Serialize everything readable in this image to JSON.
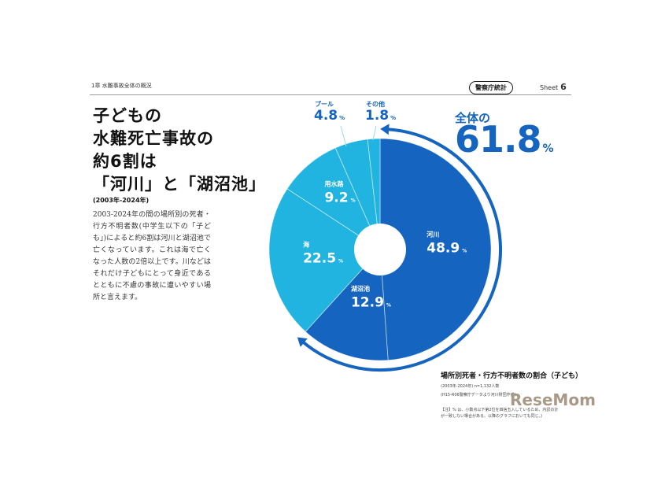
{
  "header": {
    "chapter": "1章 水難事故全体の概況",
    "badge": "警察庁統計",
    "sheet_label": "Sheet",
    "sheet_number": "6"
  },
  "headline": "子どもの\n水難死亡事故の\n約6割は\n「河川」と「湖沼池」",
  "period": "(2003年-2024年)",
  "body_text": "2003-2024年の間の場所別の死者・行方不明者数(中学生以下の「子ども」)によると約6割は河川と湖沼池で亡くなっています。これは海で亡くなった人数の2倍以上です。川などはそれだけ子どもにとって身近であるとともに不慮の事故に遭いやすい場所と言えます。",
  "total": {
    "label": "全体の",
    "value": "61.8",
    "unit": "%"
  },
  "caption": {
    "title": "場所別死者・行方不明者数の割合（子ども）",
    "period": "(2003年-2024年)  n=1,132人数",
    "source": "(H15-R06警察庁データより河川財団作成)",
    "note": "【注】% は、小数点以下第2位を四捨五入しているため、内訳の計が一致しない場合がある。以降のグラフにおいても同じ。)"
  },
  "logo": "ReseMom",
  "colors": {
    "dark": "#1565c0",
    "mid": "#1e88d8",
    "light": "#21b4e0",
    "lighter": "#36c3ea"
  },
  "chart_data": {
    "type": "pie",
    "title": "場所別死者・行方不明者数の割合（子ども）",
    "unit": "%",
    "slices": [
      {
        "name": "河川",
        "value": 48.9,
        "color": "#1565c0"
      },
      {
        "name": "湖沼池",
        "value": 12.9,
        "color": "#1565c0"
      },
      {
        "name": "海",
        "value": 22.5,
        "color": "#21b4e0"
      },
      {
        "name": "用水路",
        "value": 9.2,
        "color": "#21b4e0"
      },
      {
        "name": "プール",
        "value": 4.8,
        "color": "#21b4e0"
      },
      {
        "name": "その他",
        "value": 1.8,
        "color": "#21b4e0"
      }
    ],
    "highlight": {
      "label": "全体の",
      "value": 61.8,
      "covers": [
        "河川",
        "湖沼池"
      ]
    }
  }
}
